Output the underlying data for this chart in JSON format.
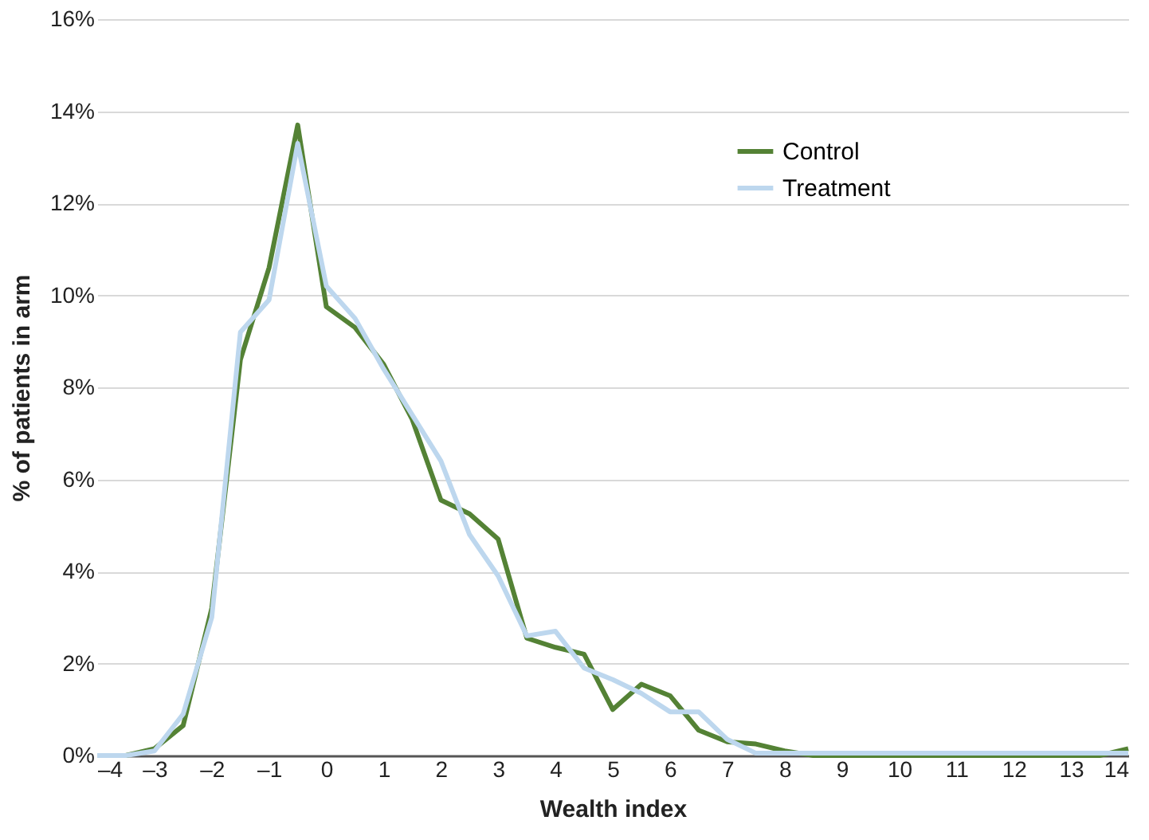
{
  "chart_data": {
    "type": "line",
    "xlabel": "Wealth index",
    "ylabel": "% of patients in arm",
    "x": [
      -4,
      -3.5,
      -3,
      -2.5,
      -2,
      -1.5,
      -1,
      -0.5,
      0,
      0.5,
      1,
      1.5,
      2,
      2.5,
      3,
      3.5,
      4,
      4.5,
      5,
      5.5,
      6,
      6.5,
      7,
      7.5,
      8,
      8.5,
      9,
      9.5,
      10,
      10.5,
      11,
      11.5,
      12,
      12.5,
      13,
      13.5,
      14
    ],
    "series": [
      {
        "name": "Control",
        "color": "#548235",
        "values": [
          0,
          0,
          0.15,
          0.65,
          3.2,
          8.6,
          10.6,
          13.7,
          9.75,
          9.3,
          8.5,
          7.3,
          5.55,
          5.25,
          4.7,
          2.55,
          2.35,
          2.2,
          1.0,
          1.55,
          1.3,
          0.55,
          0.3,
          0.25,
          0.1,
          0,
          0,
          0,
          0,
          0,
          0,
          0,
          0,
          0,
          0,
          0,
          0.15
        ]
      },
      {
        "name": "Treatment",
        "color": "#bdd7ee",
        "values": [
          0,
          0,
          0.1,
          0.9,
          3.0,
          9.2,
          9.9,
          13.3,
          10.2,
          9.5,
          8.4,
          7.4,
          6.4,
          4.8,
          3.9,
          2.6,
          2.7,
          1.9,
          1.65,
          1.35,
          0.95,
          0.95,
          0.35,
          0.05,
          0.05,
          0.05,
          0.05,
          0.05,
          0.05,
          0.05,
          0.05,
          0.05,
          0.05,
          0.05,
          0.05,
          0.05,
          0.05
        ]
      }
    ],
    "xlim": [
      -4,
      14
    ],
    "xticks": [
      {
        "value": -4,
        "label": "–4"
      },
      {
        "value": -3,
        "label": "–3"
      },
      {
        "value": -2,
        "label": "–2"
      },
      {
        "value": -1,
        "label": "–1"
      },
      0,
      1,
      2,
      3,
      4,
      5,
      6,
      7,
      8,
      9,
      10,
      11,
      12,
      13,
      14
    ],
    "ylim": [
      0,
      16
    ],
    "yticks": [
      {
        "value": 0,
        "label": "0%"
      },
      {
        "value": 2,
        "label": "2%"
      },
      {
        "value": 4,
        "label": "4%"
      },
      {
        "value": 6,
        "label": "6%"
      },
      {
        "value": 8,
        "label": "8%"
      },
      {
        "value": 10,
        "label": "10%"
      },
      {
        "value": 12,
        "label": "12%"
      },
      {
        "value": 14,
        "label": "14%"
      },
      {
        "value": 16,
        "label": "16%"
      }
    ],
    "grid": "y",
    "legend": "top right",
    "marker": "none",
    "line_style": "solid"
  }
}
